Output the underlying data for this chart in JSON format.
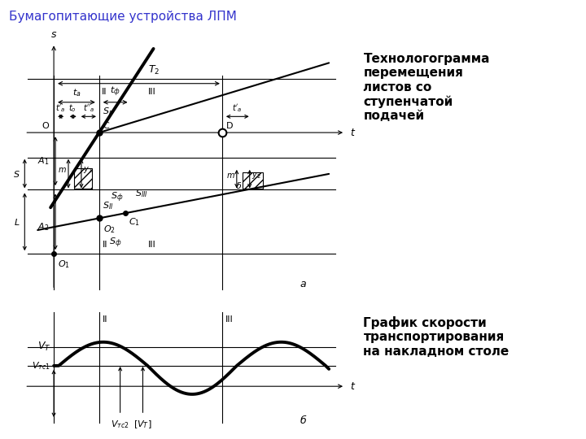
{
  "title": "Бумагопитающие устройства ЛПМ",
  "title_color": "#3333cc",
  "text_right_top": "Технологограмма\nперемещения\nлистов со\nступенчатой\nподачей",
  "text_right_bottom": "График скорости\nтранспортирования\nна накладном столе",
  "background_color": "#ffffff",
  "fig_width": 7.2,
  "fig_height": 5.4,
  "fig_dpi": 100
}
